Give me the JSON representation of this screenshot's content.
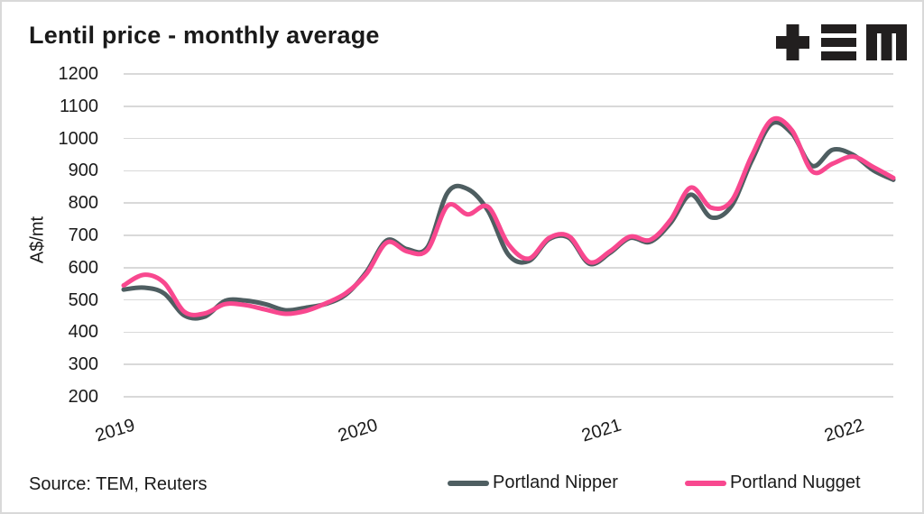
{
  "header": {
    "title": "Lentil price - monthly average",
    "logo": "TEM"
  },
  "footer": {
    "source": "Source: TEM, Reuters"
  },
  "colors": {
    "text": "#1a1a1a",
    "gridline": "#d9d9d9",
    "border": "#d9d9d9",
    "logo": "#221f1f",
    "nipper": "#4e5e61",
    "nugget": "#f8488f"
  },
  "chart_data": {
    "type": "line",
    "title": "Lentil price - monthly average",
    "xlabel": "",
    "ylabel": "A$/mt",
    "ylim": [
      200,
      1200
    ],
    "yticks": [
      1200,
      1100,
      1000,
      900,
      800,
      700,
      600,
      500,
      400,
      300,
      200
    ],
    "x_frequency": "monthly",
    "x_start": "2019-01",
    "x_end": "2022-03",
    "xticks": [
      {
        "label": "2019",
        "month_index": 0
      },
      {
        "label": "2020",
        "month_index": 12
      },
      {
        "label": "2021",
        "month_index": 24
      },
      {
        "label": "2022",
        "month_index": 36
      }
    ],
    "grid": "horizontal",
    "legend_position": "bottom",
    "line_width": 5,
    "series": [
      {
        "name": "Portland Nipper",
        "color": "#4e5e61",
        "values": [
          532,
          538,
          520,
          452,
          448,
          497,
          498,
          487,
          468,
          476,
          488,
          518,
          588,
          685,
          657,
          663,
          833,
          843,
          775,
          640,
          620,
          688,
          692,
          612,
          645,
          692,
          680,
          738,
          826,
          756,
          790,
          930,
          1046,
          1015,
          915,
          965,
          950,
          902,
          872
        ]
      },
      {
        "name": "Portland Nugget",
        "color": "#f8488f",
        "values": [
          545,
          578,
          553,
          463,
          458,
          487,
          484,
          470,
          457,
          466,
          490,
          522,
          582,
          678,
          650,
          655,
          792,
          765,
          788,
          672,
          628,
          692,
          697,
          617,
          650,
          696,
          686,
          748,
          848,
          786,
          806,
          945,
          1058,
          1025,
          898,
          922,
          944,
          912,
          878
        ]
      }
    ]
  }
}
